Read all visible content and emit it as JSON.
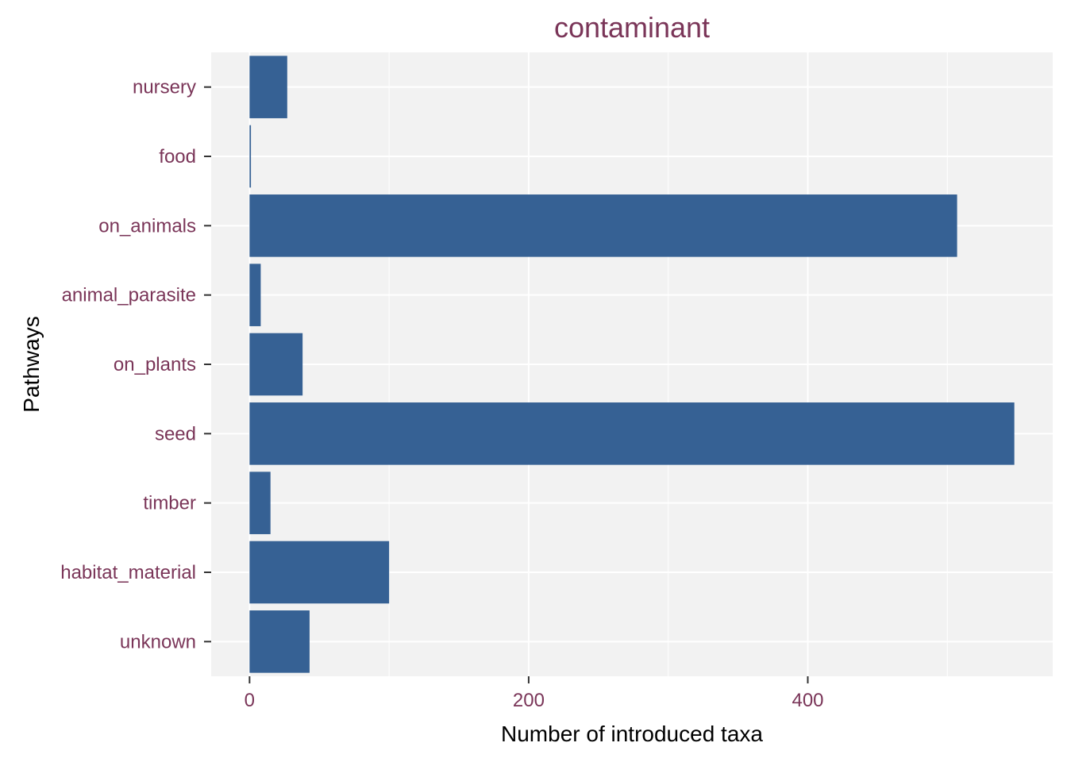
{
  "chart_data": {
    "type": "bar",
    "orientation": "horizontal",
    "title": "contaminant",
    "xlabel": "Number of introduced taxa",
    "ylabel": "Pathways",
    "categories": [
      "nursery",
      "food",
      "on_animals",
      "animal_parasite",
      "on_plants",
      "seed",
      "timber",
      "habitat_material",
      "unknown"
    ],
    "values": [
      27,
      1,
      507,
      8,
      38,
      548,
      15,
      100,
      43
    ],
    "xlim": [
      -27.5,
      575.5
    ],
    "xticks": [
      0,
      200,
      400
    ],
    "grid": true,
    "colors": {
      "bar": "#366194",
      "panel": "#f2f2f2",
      "grid": "#ffffff",
      "label": "#7a3558",
      "axis_title": "#000000"
    }
  }
}
